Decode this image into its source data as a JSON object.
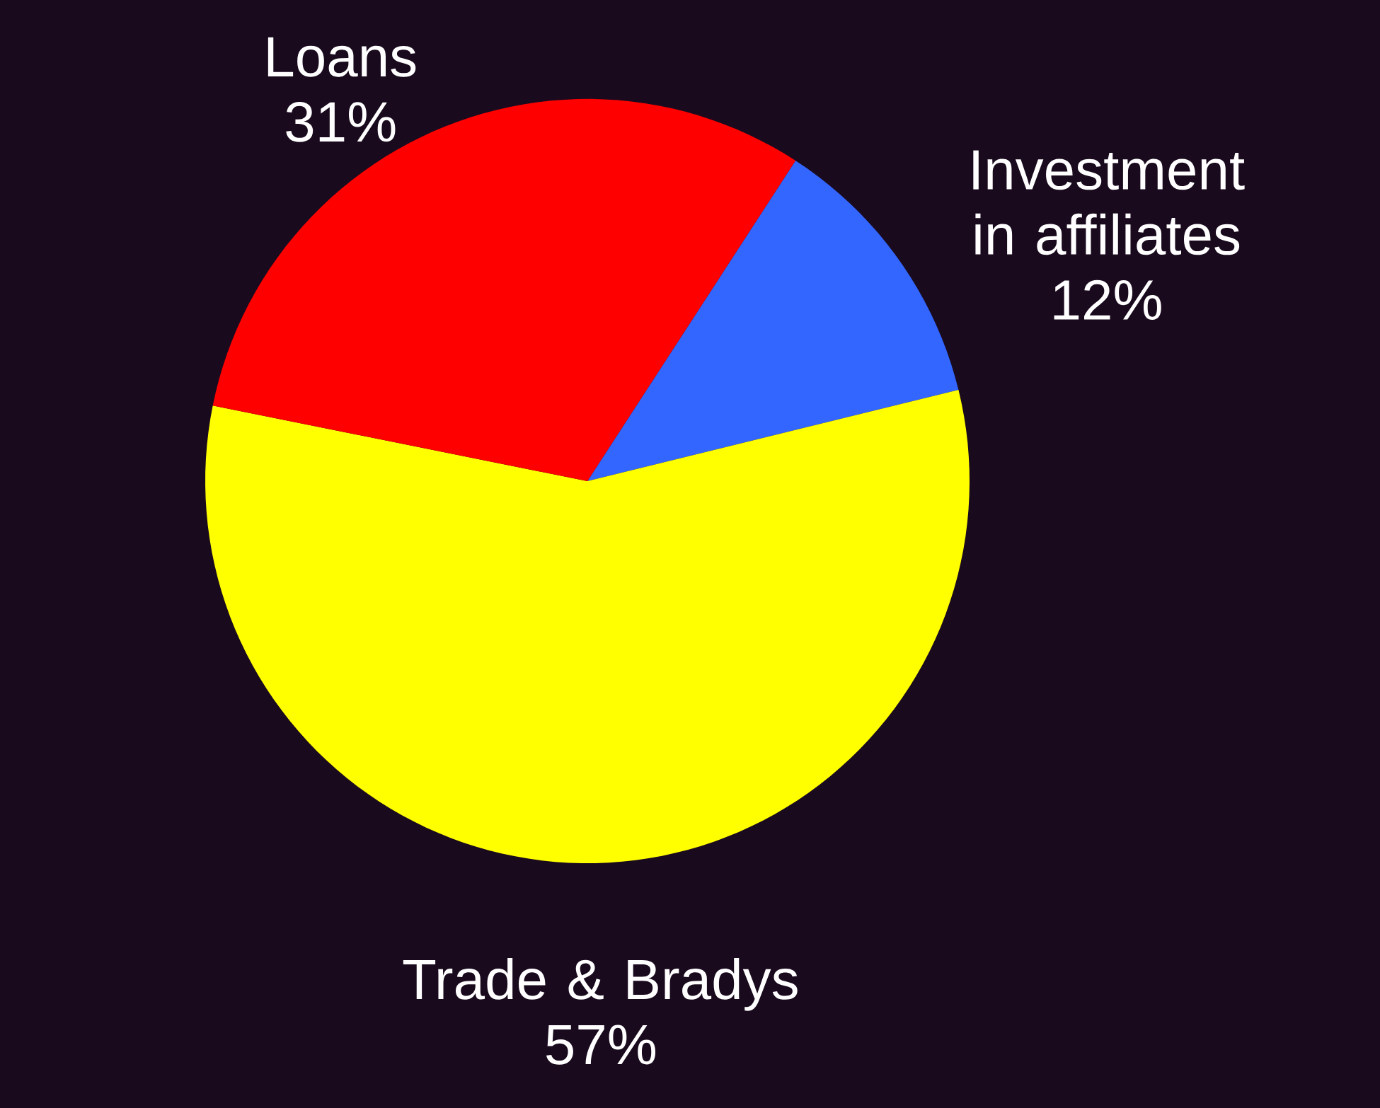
{
  "chart_data": {
    "type": "pie",
    "categories": [
      "Investment in affiliates",
      "Trade & Bradys",
      "Loans"
    ],
    "values": [
      12,
      57,
      31
    ],
    "value_labels": [
      "12%",
      "57%",
      "31%"
    ],
    "colors": [
      "#3366ff",
      "#ffff00",
      "#ff0000"
    ]
  }
}
